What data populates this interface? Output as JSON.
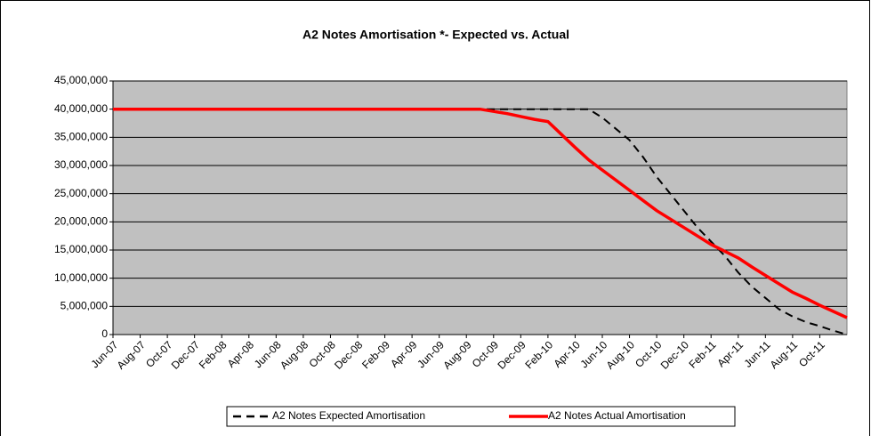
{
  "chart_data": {
    "type": "line",
    "title": "A2 Notes Amortisation *- Expected vs. Actual",
    "categories": [
      "Jun-07",
      null,
      "Aug-07",
      null,
      "Oct-07",
      null,
      "Dec-07",
      null,
      "Feb-08",
      null,
      "Apr-08",
      null,
      "Jun-08",
      null,
      "Aug-08",
      null,
      "Oct-08",
      null,
      "Dec-08",
      null,
      "Feb-09",
      null,
      "Apr-09",
      null,
      "Jun-09",
      null,
      "Aug-09",
      null,
      "Oct-09",
      null,
      "Dec-09",
      null,
      "Feb-10",
      null,
      "Apr-10",
      null,
      "Jun-10",
      null,
      "Aug-10",
      null,
      "Oct-10",
      null,
      "Dec-10",
      null,
      "Feb-11",
      null,
      "Apr-11",
      null,
      "Jun-11",
      null,
      "Aug-11",
      null,
      "Oct-11",
      null,
      null
    ],
    "series": [
      {
        "name": "A2 Notes Expected Amortisation",
        "color": "#000000",
        "dash": true,
        "values": [
          40000000,
          40000000,
          40000000,
          40000000,
          40000000,
          40000000,
          40000000,
          40000000,
          40000000,
          40000000,
          40000000,
          40000000,
          40000000,
          40000000,
          40000000,
          40000000,
          40000000,
          40000000,
          40000000,
          40000000,
          40000000,
          40000000,
          40000000,
          40000000,
          40000000,
          40000000,
          40000000,
          40000000,
          40000000,
          40000000,
          40000000,
          40000000,
          40000000,
          40000000,
          40000000,
          40000000,
          38500000,
          36500000,
          34500000,
          31500000,
          28000000,
          25000000,
          22000000,
          19000000,
          16500000,
          14000000,
          11000000,
          8500000,
          6500000,
          4500000,
          3200000,
          2200000,
          1500000,
          700000,
          0
        ]
      },
      {
        "name": "A2 Notes Actual Amortisation",
        "color": "#ff0000",
        "dash": false,
        "values": [
          40000000,
          40000000,
          40000000,
          40000000,
          40000000,
          40000000,
          40000000,
          40000000,
          40000000,
          40000000,
          40000000,
          40000000,
          40000000,
          40000000,
          40000000,
          40000000,
          40000000,
          40000000,
          40000000,
          40000000,
          40000000,
          40000000,
          40000000,
          40000000,
          40000000,
          40000000,
          40000000,
          40000000,
          39600000,
          39200000,
          38700000,
          38200000,
          37800000,
          35500000,
          33200000,
          31000000,
          29200000,
          27400000,
          25600000,
          23800000,
          22000000,
          20500000,
          19000000,
          17500000,
          16000000,
          14800000,
          13600000,
          12000000,
          10500000,
          9000000,
          7500000,
          6400000,
          5200000,
          4100000,
          3000000
        ]
      }
    ],
    "ylim": [
      0,
      45000000
    ],
    "yticks": [
      0,
      {
        "value": 5000000,
        "label": "5,000,000"
      },
      {
        "value": 10000000,
        "label": "10,000,000"
      },
      {
        "value": 15000000,
        "label": "15,000,000"
      },
      {
        "value": 20000000,
        "label": "20,000,000"
      },
      {
        "value": 25000000,
        "label": "25,000,000"
      },
      {
        "value": 30000000,
        "label": "30,000,000"
      },
      {
        "value": 35000000,
        "label": "35,000,000"
      },
      {
        "value": 40000000,
        "label": "40,000,000"
      },
      {
        "value": 45000000,
        "label": "45,000,000"
      }
    ],
    "grid": true,
    "plot_background": "#c0c0c0",
    "legend": "bottom"
  }
}
